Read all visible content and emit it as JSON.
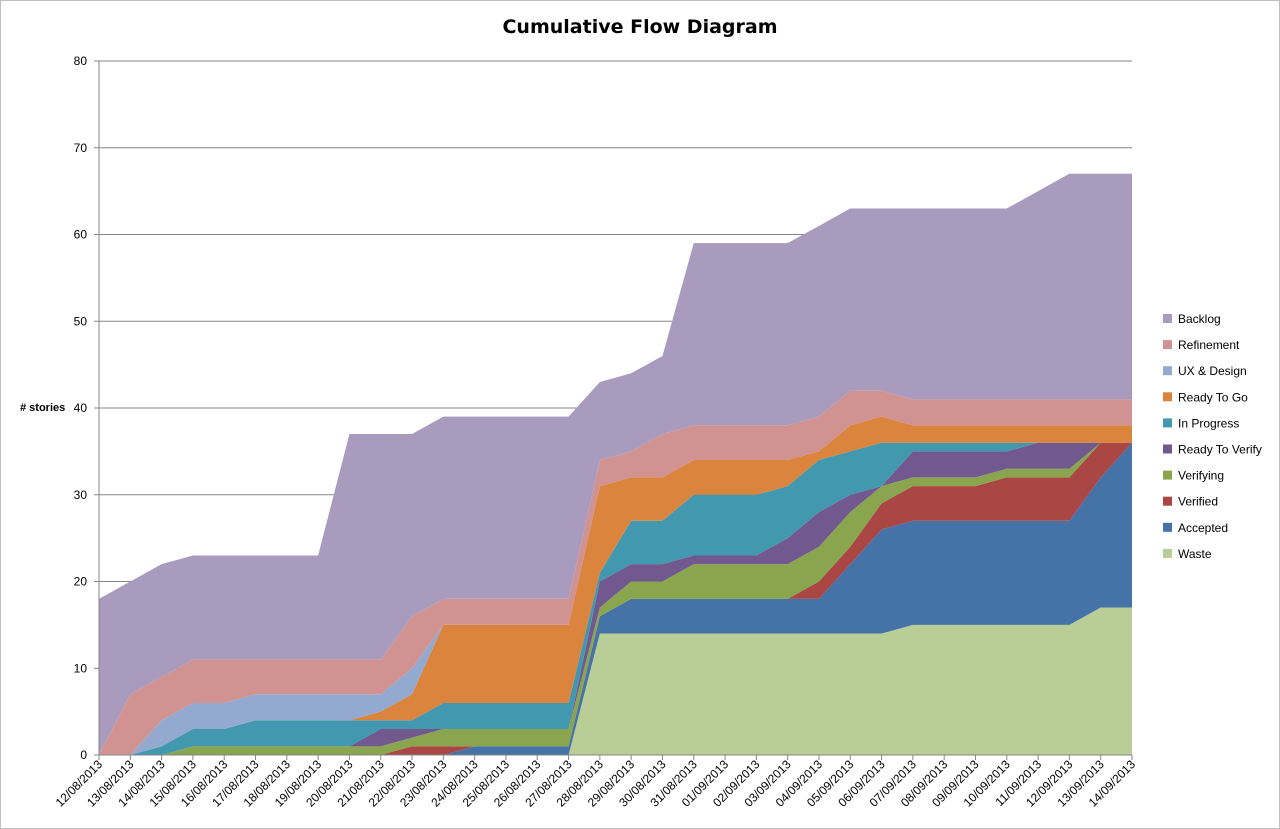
{
  "chart_data": {
    "type": "area",
    "stacked": true,
    "title": "Cumulative Flow Diagram",
    "xlabel": "",
    "ylabel": "# stories",
    "ylim": [
      0,
      80
    ],
    "yticks": [
      0,
      10,
      20,
      30,
      40,
      50,
      60,
      70,
      80
    ],
    "grid": true,
    "legend_position": "right",
    "categories": [
      "12/08/2013",
      "13/08/2013",
      "14/08/2013",
      "15/08/2013",
      "16/08/2013",
      "17/08/2013",
      "18/08/2013",
      "19/08/2013",
      "20/08/2013",
      "21/08/2013",
      "22/08/2013",
      "23/08/2013",
      "24/08/2013",
      "25/08/2013",
      "26/08/2013",
      "27/08/2013",
      "28/08/2013",
      "29/08/2013",
      "30/08/2013",
      "31/08/2013",
      "01/09/2013",
      "02/09/2013",
      "03/09/2013",
      "04/09/2013",
      "05/09/2013",
      "06/09/2013",
      "07/09/2013",
      "08/09/2013",
      "09/09/2013",
      "10/09/2013",
      "11/09/2013",
      "12/09/2013",
      "13/09/2013",
      "14/09/2013"
    ],
    "series": [
      {
        "name": "Waste",
        "color": "#b9cd96",
        "values": [
          0,
          0,
          0,
          0,
          0,
          0,
          0,
          0,
          0,
          0,
          0,
          0,
          0,
          0,
          0,
          0,
          14,
          14,
          14,
          14,
          14,
          14,
          14,
          14,
          14,
          14,
          15,
          15,
          15,
          15,
          15,
          15,
          17,
          17
        ]
      },
      {
        "name": "Accepted",
        "color": "#4572a7",
        "values": [
          0,
          0,
          0,
          0,
          0,
          0,
          0,
          0,
          0,
          0,
          0,
          0,
          1,
          1,
          1,
          1,
          2,
          4,
          4,
          4,
          4,
          4,
          4,
          4,
          8,
          12,
          12,
          12,
          12,
          12,
          12,
          12,
          15,
          19
        ]
      },
      {
        "name": "Verified",
        "color": "#aa4643",
        "values": [
          0,
          0,
          0,
          0,
          0,
          0,
          0,
          0,
          0,
          0,
          1,
          1,
          0,
          0,
          0,
          0,
          0,
          0,
          0,
          0,
          0,
          0,
          0,
          2,
          2,
          3,
          4,
          4,
          4,
          5,
          5,
          5,
          4,
          0
        ]
      },
      {
        "name": "Verifying",
        "color": "#89a54e",
        "values": [
          0,
          0,
          0,
          1,
          1,
          1,
          1,
          1,
          1,
          1,
          1,
          2,
          2,
          2,
          2,
          2,
          1,
          2,
          2,
          4,
          4,
          4,
          4,
          4,
          4,
          2,
          1,
          1,
          1,
          1,
          1,
          1,
          0,
          0
        ]
      },
      {
        "name": "Ready To Verify",
        "color": "#71588f",
        "values": [
          0,
          0,
          0,
          0,
          0,
          0,
          0,
          0,
          0,
          2,
          1,
          0,
          0,
          0,
          0,
          0,
          3,
          2,
          2,
          1,
          1,
          1,
          3,
          4,
          2,
          0,
          3,
          3,
          3,
          2,
          3,
          3,
          0,
          0
        ]
      },
      {
        "name": "In Progress",
        "color": "#4198af",
        "values": [
          0,
          0,
          1,
          2,
          2,
          3,
          3,
          3,
          3,
          1,
          1,
          3,
          3,
          3,
          3,
          3,
          1,
          5,
          5,
          7,
          7,
          7,
          6,
          6,
          5,
          5,
          1,
          1,
          1,
          1,
          0,
          0,
          0,
          0
        ]
      },
      {
        "name": "Ready To Go",
        "color": "#db843d",
        "values": [
          0,
          0,
          0,
          0,
          0,
          0,
          0,
          0,
          0,
          1,
          3,
          9,
          9,
          9,
          9,
          9,
          10,
          5,
          5,
          4,
          4,
          4,
          3,
          1,
          3,
          3,
          2,
          2,
          2,
          2,
          2,
          2,
          2,
          2
        ]
      },
      {
        "name": "UX & Design",
        "color": "#93a9cf",
        "values": [
          0,
          0,
          3,
          3,
          3,
          3,
          3,
          3,
          3,
          2,
          3,
          0,
          0,
          0,
          0,
          0,
          0,
          0,
          0,
          0,
          0,
          0,
          0,
          0,
          0,
          0,
          0,
          0,
          0,
          0,
          0,
          0,
          0,
          0
        ]
      },
      {
        "name": "Refinement",
        "color": "#d19392",
        "values": [
          0,
          7,
          5,
          5,
          5,
          4,
          4,
          4,
          4,
          4,
          6,
          3,
          3,
          3,
          3,
          3,
          3,
          3,
          5,
          4,
          4,
          4,
          4,
          4,
          4,
          3,
          3,
          3,
          3,
          3,
          3,
          3,
          3,
          3
        ]
      },
      {
        "name": "Backlog",
        "color": "#a99bbd",
        "values": [
          18,
          13,
          13,
          12,
          12,
          12,
          12,
          12,
          26,
          26,
          21,
          21,
          21,
          21,
          21,
          21,
          9,
          9,
          9,
          21,
          21,
          21,
          21,
          22,
          21,
          21,
          22,
          22,
          22,
          22,
          24,
          26,
          26,
          26
        ]
      }
    ]
  }
}
